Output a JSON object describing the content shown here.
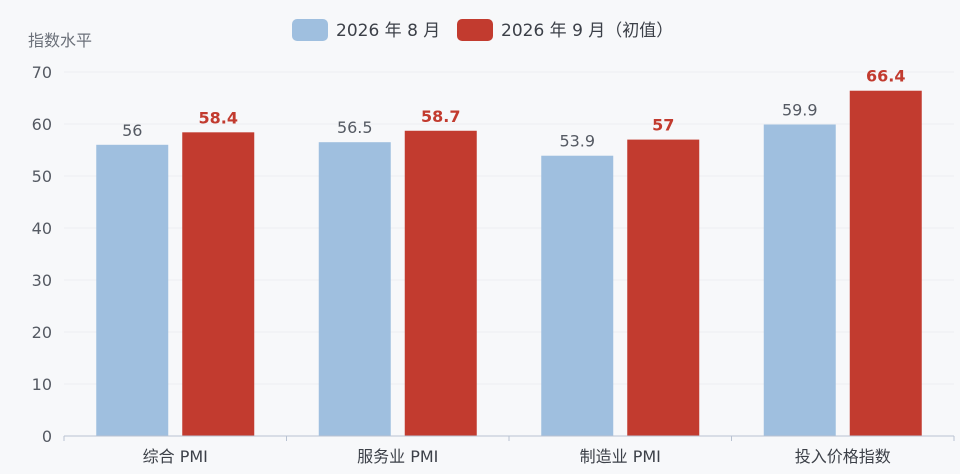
{
  "chart_data": {
    "type": "bar",
    "ylabel": "指数水平",
    "ylim": [
      0,
      70
    ],
    "yticks": [
      0,
      10,
      20,
      30,
      40,
      50,
      60,
      70
    ],
    "grid": true,
    "legend_position": "top-center",
    "categories": [
      "综合 PMI",
      "服务业 PMI",
      "制造业 PMI",
      "投入价格指数"
    ],
    "series": [
      {
        "name": "2026 年 8 月",
        "color": "#9fbfdf",
        "values": [
          56,
          56.5,
          53.9,
          59.9
        ]
      },
      {
        "name": "2026 年 9 月（初值）",
        "color": "#c23b2f",
        "values": [
          58.4,
          58.7,
          57,
          66.4
        ]
      }
    ]
  }
}
